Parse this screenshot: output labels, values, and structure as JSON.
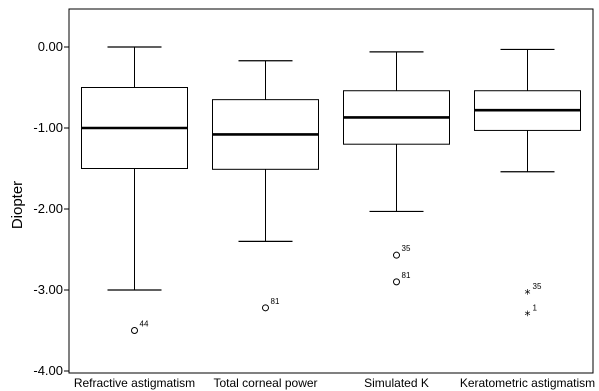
{
  "chart_data": {
    "type": "boxplot",
    "title": "",
    "xlabel": "",
    "ylabel": "Diopter",
    "ylim": [
      -4.0,
      0.25
    ],
    "yticks": [
      0.0,
      -1.0,
      -2.0,
      -3.0,
      -4.0
    ],
    "ytick_labels": [
      "0.00",
      "-1.00",
      "-2.00",
      "-3.00",
      "-4.00"
    ],
    "grid": false,
    "categories": [
      "Refractive astigmatism",
      "Total corneal power",
      "Simulated K",
      "Keratometric astigmatism"
    ],
    "boxes": [
      {
        "category": "Refractive astigmatism",
        "whisker_low": -3.0,
        "q1": -1.5,
        "median": -1.0,
        "q3": -0.5,
        "whisker_high": 0.0,
        "outliers": [
          {
            "value": -3.5,
            "label": "44",
            "marker": "circle"
          }
        ]
      },
      {
        "category": "Total corneal power",
        "whisker_low": -2.4,
        "q1": -1.51,
        "median": -1.08,
        "q3": -0.65,
        "whisker_high": -0.17,
        "outliers": [
          {
            "value": -3.22,
            "label": "81",
            "marker": "circle"
          }
        ]
      },
      {
        "category": "Simulated K",
        "whisker_low": -2.03,
        "q1": -1.2,
        "median": -0.87,
        "q3": -0.54,
        "whisker_high": -0.06,
        "outliers": [
          {
            "value": -2.57,
            "label": "35",
            "marker": "circle"
          },
          {
            "value": -2.9,
            "label": "81",
            "marker": "circle"
          }
        ]
      },
      {
        "category": "Keratometric astigmatism",
        "whisker_low": -1.54,
        "q1": -1.03,
        "median": -0.78,
        "q3": -0.54,
        "whisker_high": -0.03,
        "outliers": [
          {
            "value": -3.04,
            "label": "35",
            "marker": "star"
          },
          {
            "value": -3.3,
            "label": "1",
            "marker": "star"
          }
        ]
      }
    ]
  }
}
